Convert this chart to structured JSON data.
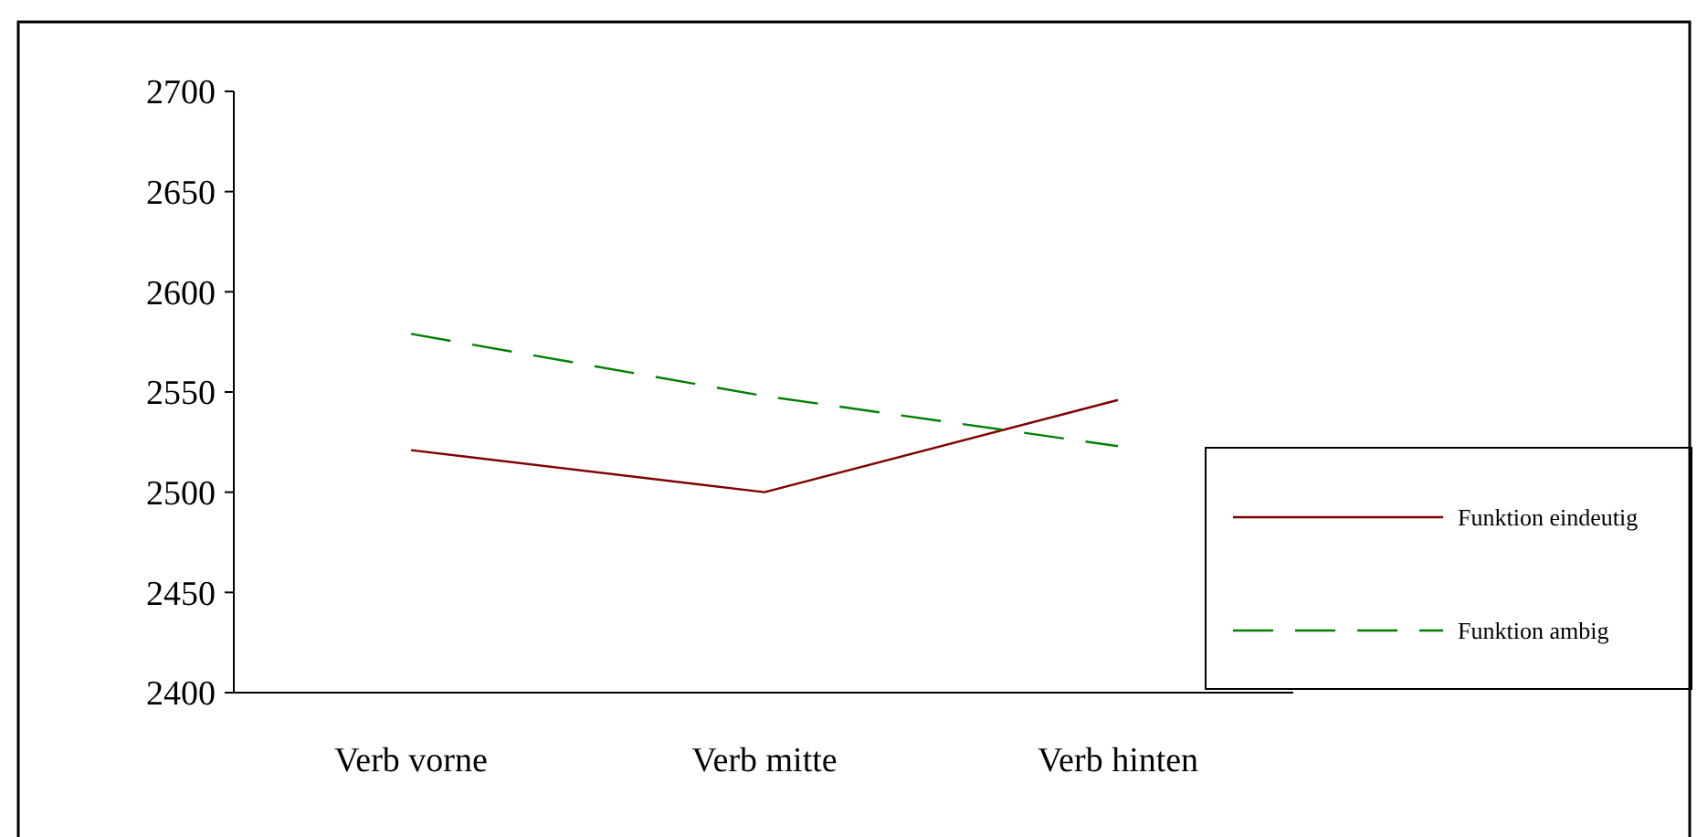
{
  "chart_data": {
    "type": "line",
    "categories": [
      "Verb vorne",
      "Verb mitte",
      "Verb hinten"
    ],
    "series": [
      {
        "name": "Funktion eindeutig",
        "color": "#800000",
        "values": [
          2521,
          2500,
          2546
        ],
        "line_style": "solid"
      },
      {
        "name": "Funktion ambig",
        "color": "#008000",
        "values": [
          2579,
          2548,
          2523
        ],
        "line_style": "dashed"
      }
    ],
    "ylim": [
      2400,
      2700
    ],
    "yticks": [
      2400,
      2450,
      2500,
      2550,
      2600,
      2650,
      2700
    ],
    "grid": false,
    "legend": "right"
  }
}
